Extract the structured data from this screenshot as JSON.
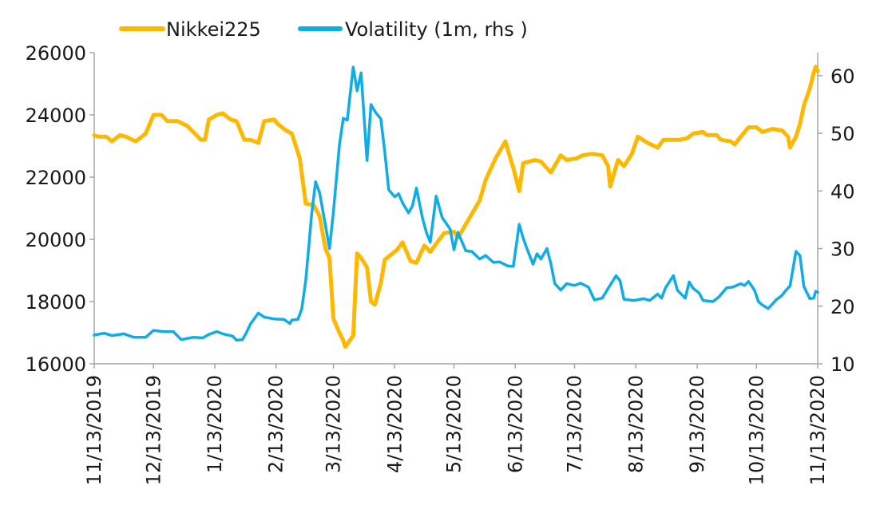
{
  "chart_data": {
    "type": "line",
    "title": "",
    "legend_position": "top-left",
    "grid": false,
    "x_dates": [
      "11/13/2019",
      "12/13/2019",
      "1/13/2020",
      "2/13/2020",
      "3/13/2020",
      "4/13/2020",
      "5/13/2020",
      "6/13/2020",
      "7/13/2020",
      "8/13/2020",
      "9/13/2020",
      "10/13/2020",
      "11/13/2020"
    ],
    "x_range": [
      "11/13/2019",
      "11/13/2020"
    ],
    "y_left": {
      "range": [
        16000,
        26000
      ],
      "ticks": [
        16000,
        18000,
        20000,
        22000,
        24000,
        26000
      ],
      "tick_labels": [
        "16000",
        "18000",
        "20000",
        "22000",
        "24000",
        "26000"
      ]
    },
    "y_right": {
      "range": [
        10,
        64
      ],
      "ticks": [
        10,
        20,
        30,
        40,
        50,
        60
      ],
      "tick_labels": [
        "10",
        "20",
        "30",
        "40",
        "50",
        "60"
      ]
    },
    "series": [
      {
        "name": "Nikkei225",
        "axis": "left",
        "color": "#FFB800",
        "points": [
          [
            "2019-11-13",
            23350
          ],
          [
            "2019-11-15",
            23300
          ],
          [
            "2019-11-19",
            23300
          ],
          [
            "2019-11-22",
            23150
          ],
          [
            "2019-11-26",
            23350
          ],
          [
            "2019-11-29",
            23300
          ],
          [
            "2019-12-04",
            23150
          ],
          [
            "2019-12-09",
            23400
          ],
          [
            "2019-12-13",
            24000
          ],
          [
            "2019-12-17",
            24000
          ],
          [
            "2019-12-20",
            23800
          ],
          [
            "2019-12-25",
            23800
          ],
          [
            "2019-12-30",
            23650
          ],
          [
            "2020-01-06",
            23200
          ],
          [
            "2020-01-08",
            23200
          ],
          [
            "2020-01-10",
            23850
          ],
          [
            "2020-01-14",
            24000
          ],
          [
            "2020-01-17",
            24050
          ],
          [
            "2020-01-21",
            23850
          ],
          [
            "2020-01-24",
            23800
          ],
          [
            "2020-01-28",
            23200
          ],
          [
            "2020-01-31",
            23200
          ],
          [
            "2020-02-04",
            23100
          ],
          [
            "2020-02-07",
            23800
          ],
          [
            "2020-02-12",
            23850
          ],
          [
            "2020-02-14",
            23700
          ],
          [
            "2020-02-18",
            23500
          ],
          [
            "2020-02-21",
            23400
          ],
          [
            "2020-02-25",
            22600
          ],
          [
            "2020-02-28",
            21150
          ],
          [
            "2020-03-03",
            21100
          ],
          [
            "2020-03-06",
            20750
          ],
          [
            "2020-03-09",
            19700
          ],
          [
            "2020-03-11",
            19400
          ],
          [
            "2020-03-13",
            17450
          ],
          [
            "2020-03-16",
            17000
          ],
          [
            "2020-03-18",
            16750
          ],
          [
            "2020-03-19",
            16550
          ],
          [
            "2020-03-23",
            16900
          ],
          [
            "2020-03-25",
            19550
          ],
          [
            "2020-03-27",
            19400
          ],
          [
            "2020-03-30",
            19100
          ],
          [
            "2020-04-01",
            18000
          ],
          [
            "2020-04-03",
            17900
          ],
          [
            "2020-04-06",
            18600
          ],
          [
            "2020-04-08",
            19350
          ],
          [
            "2020-04-10",
            19450
          ],
          [
            "2020-04-14",
            19650
          ],
          [
            "2020-04-17",
            19900
          ],
          [
            "2020-04-21",
            19300
          ],
          [
            "2020-04-24",
            19250
          ],
          [
            "2020-04-28",
            19800
          ],
          [
            "2020-05-01",
            19600
          ],
          [
            "2020-05-08",
            20200
          ],
          [
            "2020-05-13",
            20250
          ],
          [
            "2020-05-15",
            20050
          ],
          [
            "2020-05-20",
            20600
          ],
          [
            "2020-05-26",
            21250
          ],
          [
            "2020-05-29",
            21900
          ],
          [
            "2020-06-03",
            22600
          ],
          [
            "2020-06-08",
            23150
          ],
          [
            "2020-06-11",
            22500
          ],
          [
            "2020-06-12",
            22300
          ],
          [
            "2020-06-15",
            21550
          ],
          [
            "2020-06-17",
            22450
          ],
          [
            "2020-06-23",
            22550
          ],
          [
            "2020-06-26",
            22500
          ],
          [
            "2020-07-01",
            22150
          ],
          [
            "2020-07-06",
            22700
          ],
          [
            "2020-07-09",
            22550
          ],
          [
            "2020-07-14",
            22600
          ],
          [
            "2020-07-17",
            22700
          ],
          [
            "2020-07-22",
            22750
          ],
          [
            "2020-07-27",
            22700
          ],
          [
            "2020-07-30",
            22350
          ],
          [
            "2020-07-31",
            21700
          ],
          [
            "2020-08-04",
            22550
          ],
          [
            "2020-08-07",
            22350
          ],
          [
            "2020-08-11",
            22750
          ],
          [
            "2020-08-14",
            23300
          ],
          [
            "2020-08-19",
            23100
          ],
          [
            "2020-08-24",
            22950
          ],
          [
            "2020-08-27",
            23200
          ],
          [
            "2020-09-01",
            23200
          ],
          [
            "2020-09-04",
            23200
          ],
          [
            "2020-09-08",
            23250
          ],
          [
            "2020-09-11",
            23400
          ],
          [
            "2020-09-16",
            23450
          ],
          [
            "2020-09-18",
            23350
          ],
          [
            "2020-09-23",
            23350
          ],
          [
            "2020-09-25",
            23200
          ],
          [
            "2020-09-30",
            23150
          ],
          [
            "2020-10-02",
            23050
          ],
          [
            "2020-10-07",
            23450
          ],
          [
            "2020-10-09",
            23600
          ],
          [
            "2020-10-13",
            23600
          ],
          [
            "2020-10-16",
            23450
          ],
          [
            "2020-10-21",
            23550
          ],
          [
            "2020-10-26",
            23500
          ],
          [
            "2020-10-29",
            23300
          ],
          [
            "2020-10-30",
            22950
          ],
          [
            "2020-11-02",
            23300
          ],
          [
            "2020-11-04",
            23700
          ],
          [
            "2020-11-06",
            24300
          ],
          [
            "2020-11-09",
            24850
          ],
          [
            "2020-11-11",
            25350
          ],
          [
            "2020-11-12",
            25550
          ],
          [
            "2020-11-13",
            25400
          ]
        ]
      },
      {
        "name": "Volatility (1m, rhs )",
        "axis": "right",
        "color": "#10ACE6",
        "points": [
          [
            "2019-11-13",
            15.0
          ],
          [
            "2019-11-18",
            15.3
          ],
          [
            "2019-11-22",
            14.9
          ],
          [
            "2019-11-28",
            15.2
          ],
          [
            "2019-12-03",
            14.6
          ],
          [
            "2019-12-09",
            14.6
          ],
          [
            "2019-12-13",
            15.8
          ],
          [
            "2019-12-18",
            15.6
          ],
          [
            "2019-12-23",
            15.6
          ],
          [
            "2019-12-27",
            14.2
          ],
          [
            "2020-01-02",
            14.6
          ],
          [
            "2020-01-07",
            14.5
          ],
          [
            "2020-01-10",
            15.1
          ],
          [
            "2020-01-14",
            15.6
          ],
          [
            "2020-01-17",
            15.2
          ],
          [
            "2020-01-22",
            14.8
          ],
          [
            "2020-01-24",
            14.1
          ],
          [
            "2020-01-27",
            14.2
          ],
          [
            "2020-01-29",
            15.4
          ],
          [
            "2020-01-31",
            16.9
          ],
          [
            "2020-02-04",
            18.8
          ],
          [
            "2020-02-07",
            18.1
          ],
          [
            "2020-02-12",
            17.8
          ],
          [
            "2020-02-17",
            17.7
          ],
          [
            "2020-02-20",
            17.0
          ],
          [
            "2020-02-21",
            17.6
          ],
          [
            "2020-02-24",
            17.7
          ],
          [
            "2020-02-26",
            19.5
          ],
          [
            "2020-02-28",
            24.5
          ],
          [
            "2020-03-02",
            36.0
          ],
          [
            "2020-03-04",
            41.6
          ],
          [
            "2020-03-06",
            39.7
          ],
          [
            "2020-03-09",
            34.0
          ],
          [
            "2020-03-11",
            30.0
          ],
          [
            "2020-03-13",
            36.3
          ],
          [
            "2020-03-16",
            47.9
          ],
          [
            "2020-03-18",
            52.6
          ],
          [
            "2020-03-20",
            52.3
          ],
          [
            "2020-03-23",
            61.5
          ],
          [
            "2020-03-25",
            57.4
          ],
          [
            "2020-03-27",
            60.5
          ],
          [
            "2020-03-30",
            45.3
          ],
          [
            "2020-04-01",
            55.0
          ],
          [
            "2020-04-03",
            53.8
          ],
          [
            "2020-04-06",
            52.5
          ],
          [
            "2020-04-08",
            46.7
          ],
          [
            "2020-04-10",
            40.2
          ],
          [
            "2020-04-13",
            39.0
          ],
          [
            "2020-04-15",
            39.5
          ],
          [
            "2020-04-17",
            37.9
          ],
          [
            "2020-04-20",
            36.2
          ],
          [
            "2020-04-22",
            37.4
          ],
          [
            "2020-04-24",
            40.5
          ],
          [
            "2020-04-27",
            35.4
          ],
          [
            "2020-04-29",
            32.8
          ],
          [
            "2020-05-01",
            31.1
          ],
          [
            "2020-05-04",
            39.1
          ],
          [
            "2020-05-07",
            35.4
          ],
          [
            "2020-05-11",
            33.4
          ],
          [
            "2020-05-13",
            29.8
          ],
          [
            "2020-05-15",
            32.8
          ],
          [
            "2020-05-19",
            29.6
          ],
          [
            "2020-05-22",
            29.5
          ],
          [
            "2020-05-26",
            28.2
          ],
          [
            "2020-05-29",
            28.8
          ],
          [
            "2020-06-02",
            27.6
          ],
          [
            "2020-06-05",
            27.7
          ],
          [
            "2020-06-09",
            27.0
          ],
          [
            "2020-06-12",
            26.9
          ],
          [
            "2020-06-15",
            34.2
          ],
          [
            "2020-06-17",
            31.8
          ],
          [
            "2020-06-19",
            29.9
          ],
          [
            "2020-06-22",
            27.3
          ],
          [
            "2020-06-24",
            29.1
          ],
          [
            "2020-06-26",
            28.2
          ],
          [
            "2020-06-29",
            30.0
          ],
          [
            "2020-07-01",
            27.4
          ],
          [
            "2020-07-03",
            23.9
          ],
          [
            "2020-07-06",
            22.8
          ],
          [
            "2020-07-09",
            23.9
          ],
          [
            "2020-07-13",
            23.6
          ],
          [
            "2020-07-16",
            24.0
          ],
          [
            "2020-07-20",
            23.3
          ],
          [
            "2020-07-23",
            21.1
          ],
          [
            "2020-07-27",
            21.4
          ],
          [
            "2020-07-30",
            23.1
          ],
          [
            "2020-08-03",
            25.3
          ],
          [
            "2020-08-05",
            24.4
          ],
          [
            "2020-08-07",
            21.2
          ],
          [
            "2020-08-12",
            21.0
          ],
          [
            "2020-08-17",
            21.3
          ],
          [
            "2020-08-20",
            21.0
          ],
          [
            "2020-08-24",
            22.1
          ],
          [
            "2020-08-26",
            21.4
          ],
          [
            "2020-08-28",
            23.2
          ],
          [
            "2020-09-01",
            25.3
          ],
          [
            "2020-09-03",
            22.8
          ],
          [
            "2020-09-07",
            21.4
          ],
          [
            "2020-09-09",
            24.2
          ],
          [
            "2020-09-11",
            23.1
          ],
          [
            "2020-09-14",
            22.3
          ],
          [
            "2020-09-16",
            21.0
          ],
          [
            "2020-09-21",
            20.8
          ],
          [
            "2020-09-24",
            21.6
          ],
          [
            "2020-09-28",
            23.2
          ],
          [
            "2020-10-01",
            23.3
          ],
          [
            "2020-10-05",
            23.9
          ],
          [
            "2020-10-07",
            23.6
          ],
          [
            "2020-10-09",
            24.3
          ],
          [
            "2020-10-12",
            22.8
          ],
          [
            "2020-10-14",
            20.8
          ],
          [
            "2020-10-16",
            20.2
          ],
          [
            "2020-10-19",
            19.6
          ],
          [
            "2020-10-23",
            21.1
          ],
          [
            "2020-10-26",
            21.9
          ],
          [
            "2020-10-28",
            22.8
          ],
          [
            "2020-10-30",
            23.5
          ],
          [
            "2020-11-02",
            29.5
          ],
          [
            "2020-11-04",
            28.8
          ],
          [
            "2020-11-06",
            23.4
          ],
          [
            "2020-11-09",
            21.3
          ],
          [
            "2020-11-11",
            21.4
          ],
          [
            "2020-11-12",
            22.6
          ],
          [
            "2020-11-13",
            22.4
          ]
        ]
      }
    ]
  }
}
